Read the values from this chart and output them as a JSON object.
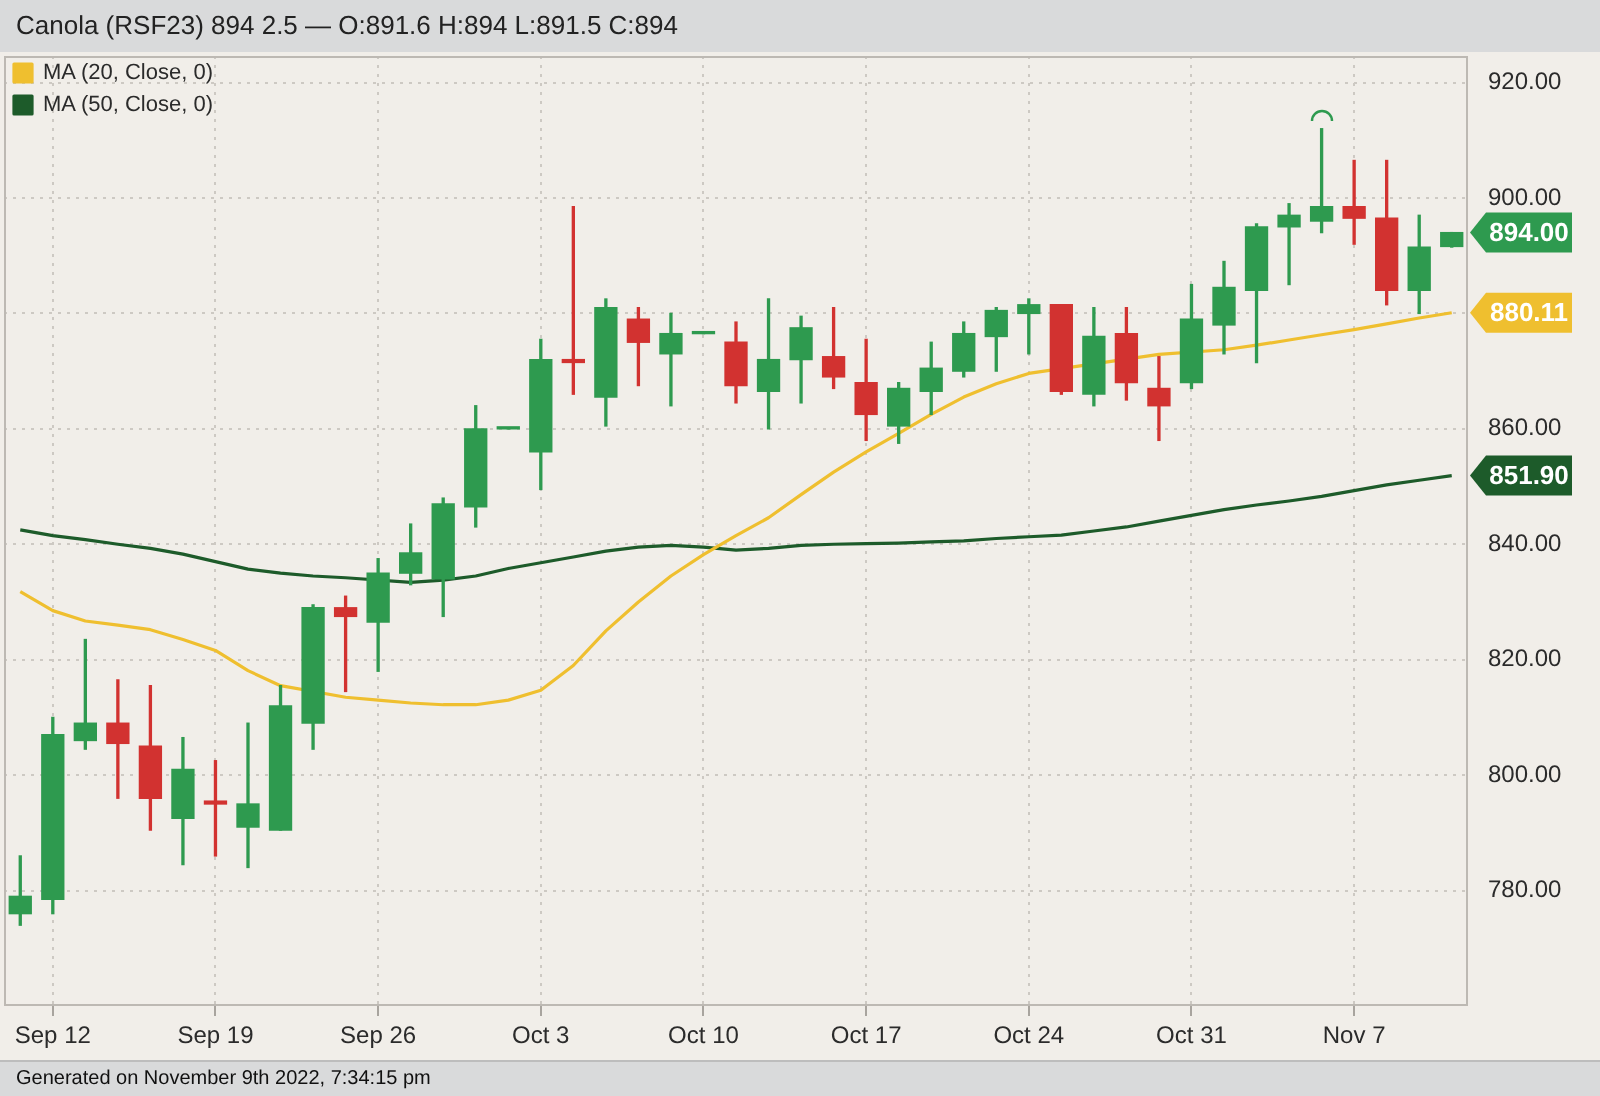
{
  "chart_data": {
    "type": "candlestick",
    "title": "Canola (RSF23) 894 2.5 — O:891.6 H:894 L:891.5 C:894",
    "categories": [
      null,
      "Sep 12",
      null,
      null,
      null,
      null,
      "Sep 19",
      null,
      null,
      null,
      null,
      "Sep 26",
      null,
      null,
      null,
      null,
      "Oct 3",
      null,
      null,
      null,
      null,
      "Oct 10",
      null,
      null,
      null,
      null,
      "Oct 17",
      null,
      null,
      null,
      null,
      "Oct 24",
      null,
      null,
      null,
      null,
      "Oct 31",
      null,
      null,
      null,
      null,
      "Nov 7",
      null,
      null,
      null
    ],
    "ohlc": [
      [
        776,
        786,
        774,
        779
      ],
      [
        778.5,
        810,
        776,
        807
      ],
      [
        806,
        823.5,
        804.5,
        809
      ],
      [
        809,
        816.5,
        796,
        805.5
      ],
      [
        805,
        815.5,
        790.5,
        796
      ],
      [
        792.5,
        806.5,
        784.5,
        801
      ],
      [
        795.5,
        802.5,
        786,
        795
      ],
      [
        791,
        809,
        784,
        795
      ],
      [
        790.5,
        815.5,
        790.5,
        812
      ],
      [
        809,
        829.5,
        804.5,
        829
      ],
      [
        829,
        831,
        814.5,
        827.5
      ],
      [
        826.5,
        837.5,
        818,
        835
      ],
      [
        835,
        843.5,
        833,
        838.5
      ],
      [
        834,
        848,
        827.5,
        847
      ],
      [
        846.5,
        864,
        843,
        860
      ],
      [
        860,
        860,
        860,
        860
      ],
      [
        856,
        875.5,
        849.5,
        872
      ],
      [
        872,
        898.5,
        866,
        871.5
      ],
      [
        865.5,
        882.5,
        860.5,
        881
      ],
      [
        879,
        881,
        867.5,
        875
      ],
      [
        873,
        880,
        864,
        876.5
      ],
      [
        876.5,
        876.5,
        876.5,
        876.5
      ],
      [
        875,
        878.5,
        864.5,
        867.5
      ],
      [
        866.5,
        882.5,
        860,
        872
      ],
      [
        872,
        879.5,
        864.5,
        877.5
      ],
      [
        872.5,
        881,
        867,
        869
      ],
      [
        868,
        875.5,
        858,
        862.5
      ],
      [
        860.5,
        868,
        857.5,
        867
      ],
      [
        866.5,
        875,
        862.5,
        870.5
      ],
      [
        870,
        878.5,
        869,
        876.5
      ],
      [
        876,
        881,
        870,
        880.5
      ],
      [
        880,
        882.5,
        873,
        881.5
      ],
      [
        881.5,
        881.5,
        866,
        866.5
      ],
      [
        866,
        881,
        864,
        876
      ],
      [
        876.5,
        881,
        865,
        868
      ],
      [
        867,
        872.5,
        858,
        864
      ],
      [
        868,
        885,
        867,
        879
      ],
      [
        878,
        889,
        873,
        884.5
      ],
      [
        884,
        895.5,
        871.5,
        895
      ],
      [
        895,
        899,
        885,
        897
      ],
      [
        896,
        912,
        894,
        898.5
      ],
      [
        898.5,
        906.5,
        892,
        896.5
      ],
      [
        896.5,
        906.5,
        881.5,
        884
      ],
      [
        884,
        897,
        880,
        891.5
      ],
      [
        891.6,
        894,
        891.5,
        894
      ]
    ],
    "colors": [
      "#2e9a4f",
      "#2e9a4f",
      "#2e9a4f",
      "#d23230",
      "#d23230",
      "#2e9a4f",
      "#d23230",
      "#2e9a4f",
      "#2e9a4f",
      "#2e9a4f",
      "#d23230",
      "#2e9a4f",
      "#2e9a4f",
      "#2e9a4f",
      "#2e9a4f",
      "#2e9a4f",
      "#2e9a4f",
      "#d23230",
      "#2e9a4f",
      "#d23230",
      "#2e9a4f",
      "#2e9a4f",
      "#d23230",
      "#2e9a4f",
      "#2e9a4f",
      "#d23230",
      "#d23230",
      "#2e9a4f",
      "#2e9a4f",
      "#2e9a4f",
      "#2e9a4f",
      "#2e9a4f",
      "#d23230",
      "#2e9a4f",
      "#d23230",
      "#d23230",
      "#2e9a4f",
      "#2e9a4f",
      "#2e9a4f",
      "#2e9a4f",
      "#2e9a4f",
      "#d23230",
      "#d23230",
      "#2e9a4f",
      "#2e9a4f"
    ],
    "value_labels": [
      null,
      null,
      null,
      null,
      null,
      null,
      null,
      null,
      null,
      null,
      null,
      null,
      null,
      null,
      null,
      null,
      null,
      null,
      null,
      null,
      null,
      null,
      null,
      null,
      null,
      null,
      null,
      null,
      null,
      null,
      null,
      null,
      null,
      null,
      null,
      null,
      null,
      null,
      null,
      null,
      null,
      null,
      null,
      null,
      "894.00"
    ],
    "series": [
      {
        "name": "MA (20, Close, 0)",
        "type": "line",
        "color": "#efbf2f",
        "values": [
          831.8,
          828.5,
          826.7,
          826,
          825.2,
          823.5,
          821.6,
          818.1,
          815.5,
          null,
          813.5,
          813,
          812.5,
          812.2,
          812.2,
          813,
          814.7,
          819,
          825,
          830,
          834.5,
          838.2,
          841.5,
          844.6,
          848.6,
          852.5,
          856,
          859.2,
          862.5,
          865.5,
          867.8,
          869.6,
          null,
          null,
          null,
          872.9,
          null,
          873.7,
          874.5,
          875.4,
          876.3,
          877.2,
          878.2,
          879.2,
          880.11
        ],
        "value_labels": [
          null,
          null,
          null,
          null,
          null,
          null,
          null,
          null,
          null,
          null,
          null,
          null,
          null,
          null,
          null,
          null,
          null,
          null,
          null,
          null,
          null,
          null,
          null,
          null,
          null,
          null,
          null,
          null,
          null,
          null,
          null,
          null,
          null,
          null,
          null,
          null,
          null,
          null,
          null,
          null,
          null,
          null,
          null,
          null,
          "880.11"
        ]
      },
      {
        "name": "MA (50, Close, 0)",
        "type": "line",
        "color": "#1d5b2a",
        "values": [
          842.5,
          841.5,
          840.8,
          840,
          839.3,
          838.3,
          837,
          835.7,
          835,
          834.5,
          834.2,
          null,
          833.4,
          833.8,
          834.5,
          835.8,
          836.8,
          837.8,
          838.8,
          839.5,
          839.8,
          839.5,
          839,
          839.3,
          839.8,
          840,
          840.1,
          840.2,
          840.4,
          840.6,
          841,
          841.3,
          841.6,
          842.3,
          843,
          844,
          845,
          846,
          846.8,
          847.5,
          848.3,
          849.3,
          850.3,
          851.1,
          851.9
        ],
        "value_labels": [
          null,
          null,
          null,
          null,
          null,
          null,
          null,
          null,
          null,
          null,
          null,
          null,
          null,
          null,
          null,
          null,
          null,
          null,
          null,
          null,
          null,
          null,
          null,
          null,
          null,
          null,
          null,
          null,
          null,
          null,
          null,
          null,
          null,
          null,
          null,
          null,
          null,
          null,
          null,
          null,
          null,
          null,
          null,
          null,
          "851.90"
        ]
      }
    ],
    "ylim": [
      760,
      924.6
    ],
    "yticks": [
      {
        "value": 780,
        "label": "780.00"
      },
      {
        "value": 800,
        "label": "800.00"
      },
      {
        "value": 820,
        "label": "820.00"
      },
      {
        "value": 840,
        "label": "840.00"
      },
      {
        "value": 860,
        "label": "860.00"
      },
      {
        "value": 880,
        "label": null
      },
      {
        "value": 900,
        "label": "900.00"
      },
      {
        "value": 920,
        "label": "920.00"
      }
    ],
    "grid": true,
    "legend": "top left",
    "annotations": [
      "Generated on November 9th 2022, 7:34:15 pm"
    ]
  }
}
